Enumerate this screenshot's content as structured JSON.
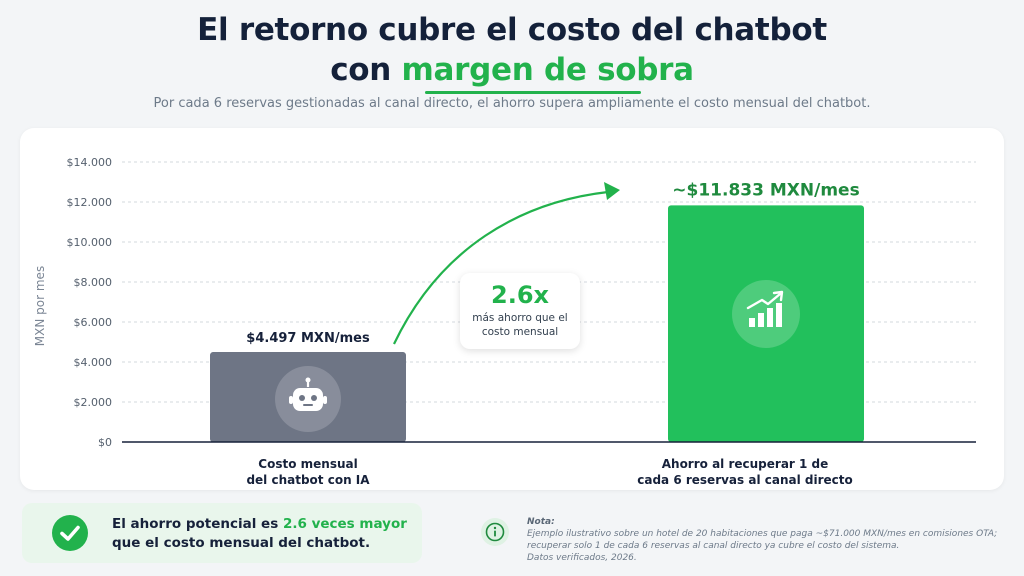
{
  "header": {
    "title_line1": "El retorno cubre el costo del chatbot",
    "title_line2_prefix": "con ",
    "title_line2_accent": "margen de sobra",
    "subtitle": "Por cada 6 reservas gestionadas al canal directo, el ahorro supera ampliamente el costo mensual del chatbot."
  },
  "colors": {
    "accent": "#22b24c",
    "bar_cost": "#6e7585",
    "bar_savings": "#22c05c",
    "value_savings": "#1f8a3e",
    "dark_text": "#16213a"
  },
  "chart_data": {
    "type": "bar",
    "ylabel": "MXN por mes",
    "ylim": [
      0,
      14000
    ],
    "yticks": [
      0,
      2000,
      4000,
      6000,
      8000,
      10000,
      12000,
      14000
    ],
    "ytick_labels": [
      "$0",
      "$2.000",
      "$4.000",
      "$6.000",
      "$8.000",
      "$10.000",
      "$12.000",
      "$14.000"
    ],
    "grid": true,
    "categories": [
      "Costo mensual del chatbot con IA",
      "Ahorro al recuperar 1 de cada 6 reservas al canal directo"
    ],
    "category_lines": [
      [
        "Costo mensual",
        "del chatbot con IA"
      ],
      [
        "Ahorro al recuperar 1 de",
        "cada 6 reservas al canal directo"
      ]
    ],
    "values": [
      4497,
      11833
    ],
    "value_labels": [
      "$4.497  MXN/mes",
      "~$11.833 MXN/mes"
    ],
    "bar_icons": [
      "robot-icon",
      "growth-chart-icon"
    ],
    "annotation": {
      "multiplier": "2.6x",
      "text": "más ahorro que el costo mensual"
    }
  },
  "callout": {
    "prefix": "El ahorro potencial es ",
    "highlight": "2.6 veces mayor",
    "suffix": " que el costo mensual del chatbot."
  },
  "note": {
    "title": "Nota:",
    "lines": [
      "Ejemplo ilustrativo sobre un hotel de 20 habitaciones que paga ~$71.000 MXN/mes en comisiones OTA;",
      "recuperar solo 1 de cada 6 reservas al canal directo ya cubre el costo del sistema.",
      "Datos verificados, 2026."
    ]
  }
}
